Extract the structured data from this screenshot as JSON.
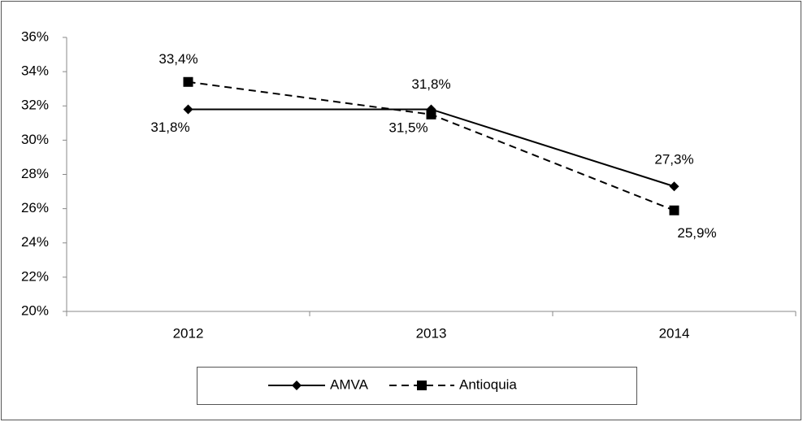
{
  "chart_data": {
    "type": "line",
    "categories": [
      "2012",
      "2013",
      "2014"
    ],
    "series": [
      {
        "name": "AMVA",
        "color": "#000000",
        "dash": "solid",
        "marker": "diamond",
        "values": [
          31.8,
          31.8,
          27.3
        ],
        "value_labels": [
          "31,8%",
          "31,8%",
          "27,3%"
        ]
      },
      {
        "name": "Antioquia",
        "color": "#000000",
        "dash": "dashed",
        "marker": "square",
        "values": [
          33.4,
          31.5,
          25.9
        ],
        "value_labels": [
          "33,4%",
          "31,5%",
          "25,9%"
        ]
      }
    ],
    "ylim": [
      20,
      36
    ],
    "yticks": [
      {
        "value": 20,
        "label": "20%"
      },
      {
        "value": 22,
        "label": "22%"
      },
      {
        "value": 24,
        "label": "24%"
      },
      {
        "value": 26,
        "label": "26%"
      },
      {
        "value": 28,
        "label": "28%"
      },
      {
        "value": 30,
        "label": "30%"
      },
      {
        "value": 32,
        "label": "32%"
      },
      {
        "value": 34,
        "label": "34%"
      },
      {
        "value": 36,
        "label": "36%"
      }
    ],
    "legend": "bottom"
  }
}
